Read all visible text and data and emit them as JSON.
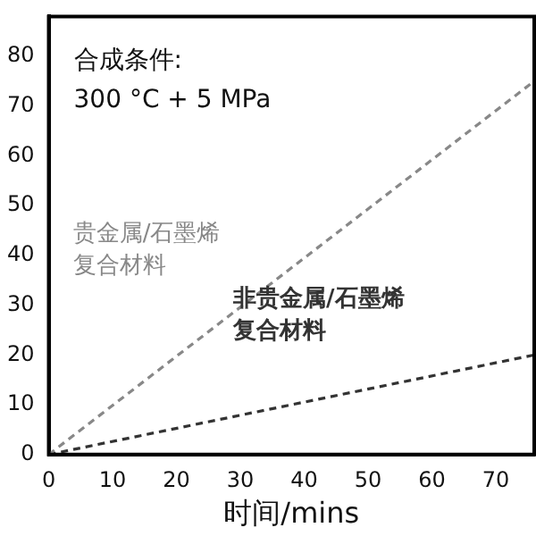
{
  "chart_data": {
    "type": "line",
    "xlabel": "时间/mins",
    "xlim": [
      0,
      76
    ],
    "xticks": [
      0,
      10,
      20,
      30,
      40,
      50,
      60,
      70
    ],
    "ylim": [
      0,
      88
    ],
    "yticks": [
      0,
      10,
      20,
      30,
      40,
      50,
      60,
      70,
      80
    ],
    "grid": false,
    "legend": false,
    "marker": "none",
    "line_style": "dashed",
    "annotations": [
      "合成条件:",
      "300 °C + 5 MPa"
    ],
    "x": [
      0,
      76
    ],
    "series": [
      {
        "name": "贵金属/石墨烯复合材料",
        "color": "#888888",
        "values": [
          0,
          75
        ]
      },
      {
        "name": "非贵金属/石墨烯复合材料",
        "color": "#333333",
        "values": [
          0,
          20
        ]
      }
    ]
  }
}
